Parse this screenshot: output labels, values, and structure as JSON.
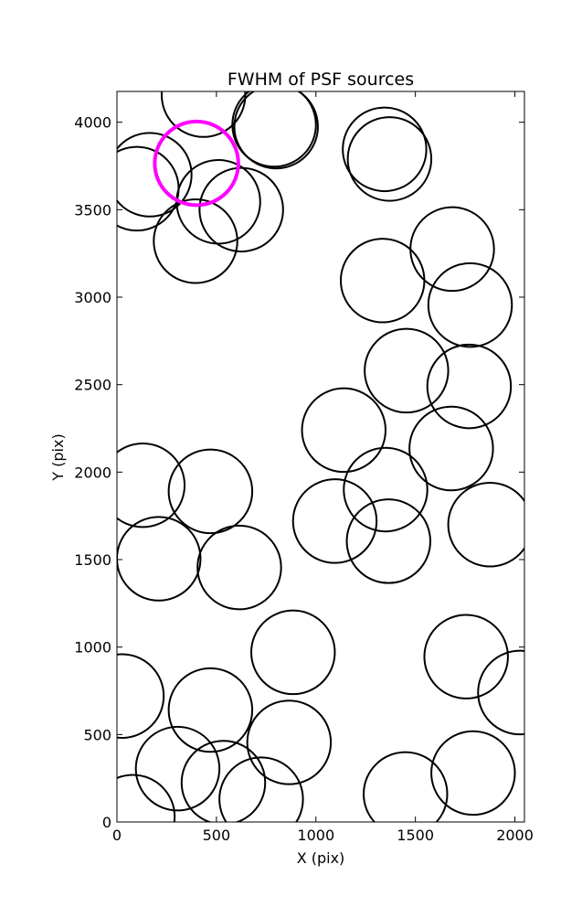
{
  "chart_data": {
    "type": "scatter",
    "title": "FWHM of PSF sources",
    "xlabel": "X (pix)",
    "ylabel": "Y (pix)",
    "xlim": [
      0,
      2048
    ],
    "ylim": [
      0,
      4176
    ],
    "xticks": [
      0,
      500,
      1000,
      1500,
      2000
    ],
    "yticks": [
      0,
      500,
      1000,
      1500,
      2000,
      2500,
      3000,
      3500,
      4000
    ],
    "grid": false,
    "marker": "open circle",
    "circle_radius_x_units": 210,
    "series": [
      {
        "color": "#000000",
        "points": [
          {
            "x": 435,
            "y": 4155
          },
          {
            "x": 790,
            "y": 3985
          },
          {
            "x": 800,
            "y": 3975
          },
          {
            "x": 1345,
            "y": 3845
          },
          {
            "x": 1370,
            "y": 3790
          },
          {
            "x": 165,
            "y": 3700
          },
          {
            "x": 100,
            "y": 3620
          },
          {
            "x": 510,
            "y": 3545
          },
          {
            "x": 625,
            "y": 3500
          },
          {
            "x": 395,
            "y": 3320
          },
          {
            "x": 1685,
            "y": 3275
          },
          {
            "x": 1335,
            "y": 3095
          },
          {
            "x": 1775,
            "y": 2955
          },
          {
            "x": 1455,
            "y": 2580
          },
          {
            "x": 1770,
            "y": 2490
          },
          {
            "x": 1140,
            "y": 2240
          },
          {
            "x": 1680,
            "y": 2135
          },
          {
            "x": 130,
            "y": 1925
          },
          {
            "x": 470,
            "y": 1890
          },
          {
            "x": 1350,
            "y": 1900
          },
          {
            "x": 1095,
            "y": 1720
          },
          {
            "x": 1365,
            "y": 1605
          },
          {
            "x": 1875,
            "y": 1700
          },
          {
            "x": 210,
            "y": 1505
          },
          {
            "x": 615,
            "y": 1455
          },
          {
            "x": 885,
            "y": 970
          },
          {
            "x": 1755,
            "y": 945
          },
          {
            "x": 25,
            "y": 720
          },
          {
            "x": 470,
            "y": 640
          },
          {
            "x": 2025,
            "y": 740
          },
          {
            "x": 865,
            "y": 455
          },
          {
            "x": 305,
            "y": 305
          },
          {
            "x": 535,
            "y": 225
          },
          {
            "x": 1790,
            "y": 280
          },
          {
            "x": 1450,
            "y": 160
          },
          {
            "x": 80,
            "y": 30
          },
          {
            "x": 725,
            "y": 130
          }
        ]
      },
      {
        "color": "#ff00ff",
        "points": [
          {
            "x": 400,
            "y": 3765
          }
        ]
      }
    ]
  }
}
